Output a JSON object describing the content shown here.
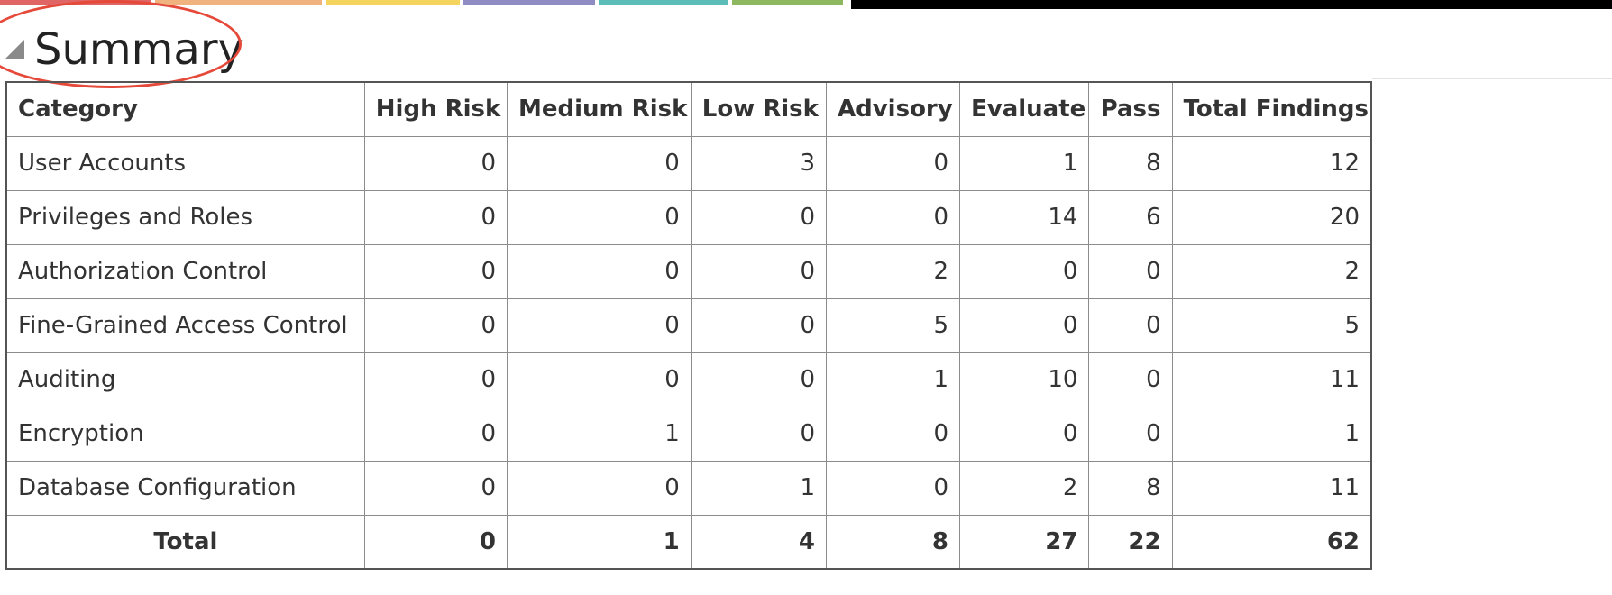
{
  "top_bars": [
    {
      "name": "bar-red",
      "color": "#e06666"
    },
    {
      "name": "bar-peach",
      "color": "#f0b27e"
    },
    {
      "name": "bar-yellow",
      "color": "#f4d35e"
    },
    {
      "name": "bar-purple",
      "color": "#8e8cc2"
    },
    {
      "name": "bar-teal",
      "color": "#5bbcb8"
    },
    {
      "name": "bar-green",
      "color": "#8db85f"
    },
    {
      "name": "bar-black",
      "color": "#000000"
    }
  ],
  "summary": {
    "title": "Summary",
    "annotation_color": "#e5493a"
  },
  "table": {
    "headers": [
      "Category",
      "High Risk",
      "Medium Risk",
      "Low Risk",
      "Advisory",
      "Evaluate",
      "Pass",
      "Total Findings"
    ],
    "rows": [
      [
        "User Accounts",
        "0",
        "0",
        "3",
        "0",
        "1",
        "8",
        "12"
      ],
      [
        "Privileges and Roles",
        "0",
        "0",
        "0",
        "0",
        "14",
        "6",
        "20"
      ],
      [
        "Authorization Control",
        "0",
        "0",
        "0",
        "2",
        "0",
        "0",
        "2"
      ],
      [
        "Fine-Grained Access Control",
        "0",
        "0",
        "0",
        "5",
        "0",
        "0",
        "5"
      ],
      [
        "Auditing",
        "0",
        "0",
        "0",
        "1",
        "10",
        "0",
        "11"
      ],
      [
        "Encryption",
        "0",
        "1",
        "0",
        "0",
        "0",
        "0",
        "1"
      ],
      [
        "Database Configuration",
        "0",
        "0",
        "1",
        "0",
        "2",
        "8",
        "11"
      ]
    ],
    "total": [
      "Total",
      "0",
      "1",
      "4",
      "8",
      "27",
      "22",
      "62"
    ]
  }
}
